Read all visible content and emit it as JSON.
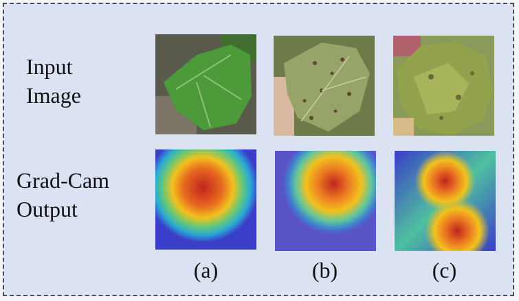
{
  "row_labels": {
    "input": [
      "Input",
      "Image"
    ],
    "gradcam": [
      "Grad-Cam",
      "Output"
    ]
  },
  "column_labels": [
    "(a)",
    "(b)",
    "(c)"
  ],
  "colors": {
    "background": "#dbe3f2",
    "border": "#4a4f59",
    "heat_hot": "#c0241c",
    "heat_warm": "#f2c21e",
    "heat_cool": "#2aa9d6",
    "heat_cold": "#3a3ec8"
  }
}
